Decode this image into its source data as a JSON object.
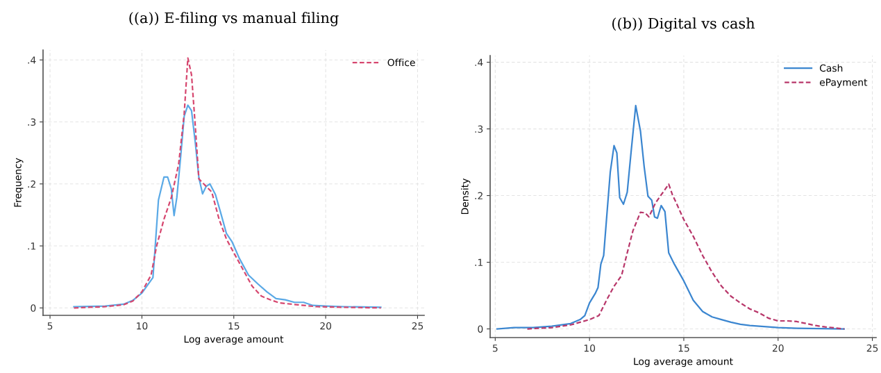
{
  "chart_data": [
    {
      "type": "line",
      "title": "((a)) E-filing vs manual filing",
      "xlabel": "Log average amount",
      "ylabel": "Frequency",
      "xlim": [
        4.62,
        25.36
      ],
      "ylim": [
        -0.012,
        0.416
      ],
      "xticks": [
        5,
        10,
        15,
        20,
        25
      ],
      "yticks": [
        0,
        {
          "value": 0.1,
          "label": ".1"
        },
        {
          "value": 0.2,
          "label": ".2"
        },
        {
          "value": 0.3,
          "label": ".3"
        },
        {
          "value": 0.4,
          "label": ".4"
        }
      ],
      "grid": true,
      "legend": "top right",
      "series": [
        {
          "color": "#5aa9e6",
          "line_style": "solid",
          "x": [
            6.3,
            8,
            9,
            9.5,
            10,
            10.6,
            10.7,
            10.9,
            11.2,
            11.4,
            11.6,
            11.75,
            11.9,
            12.1,
            12.3,
            12.5,
            12.7,
            12.9,
            13.1,
            13.3,
            13.5,
            13.7,
            14,
            14.3,
            14.6,
            14.9,
            15.3,
            15.8,
            16.3,
            16.8,
            17.3,
            17.8,
            18.3,
            18.8,
            19.3,
            20,
            21,
            23
          ],
          "values": [
            0.002,
            0.003,
            0.006,
            0.012,
            0.024,
            0.049,
            0.089,
            0.174,
            0.211,
            0.211,
            0.192,
            0.149,
            0.178,
            0.241,
            0.309,
            0.327,
            0.318,
            0.268,
            0.21,
            0.184,
            0.196,
            0.2,
            0.183,
            0.152,
            0.12,
            0.107,
            0.08,
            0.053,
            0.039,
            0.026,
            0.015,
            0.013,
            0.009,
            0.009,
            0.004,
            0.003,
            0.002,
            0.001
          ]
        },
        {
          "name": "Office",
          "color": "#d6476f",
          "line_style": "dashed",
          "x": [
            6.3,
            8,
            9,
            9.5,
            10,
            10.5,
            10.8,
            11.2,
            11.6,
            12,
            12.3,
            12.5,
            12.7,
            12.9,
            13.1,
            13.5,
            13.8,
            14.2,
            14.6,
            15,
            15.5,
            16,
            16.5,
            17,
            17.5,
            18.5,
            19.5,
            21,
            23
          ],
          "values": [
            0,
            0.002,
            0.005,
            0.011,
            0.026,
            0.053,
            0.1,
            0.143,
            0.178,
            0.232,
            0.313,
            0.403,
            0.376,
            0.295,
            0.208,
            0.196,
            0.187,
            0.143,
            0.111,
            0.089,
            0.062,
            0.035,
            0.019,
            0.013,
            0.008,
            0.005,
            0.002,
            0.001,
            0
          ]
        }
      ]
    },
    {
      "type": "line",
      "title": "((b)) Digital vs cash",
      "xlabel": "Log average amount",
      "ylabel": "Density",
      "xlim": [
        4.73,
        25.2
      ],
      "ylim": [
        -0.013,
        0.41
      ],
      "xticks": [
        5,
        10,
        15,
        20,
        25
      ],
      "yticks": [
        0,
        {
          "value": 0.1,
          "label": ".1"
        },
        {
          "value": 0.2,
          "label": ".2"
        },
        {
          "value": 0.3,
          "label": ".3"
        },
        {
          "value": 0.4,
          "label": ".4"
        }
      ],
      "grid": true,
      "legend": "top right",
      "series": [
        {
          "name": "Cash",
          "color": "#3b86d0",
          "line_style": "solid",
          "x": [
            5.1,
            6,
            7,
            8,
            9,
            9.5,
            9.75,
            10,
            10.3,
            10.45,
            10.6,
            10.75,
            10.9,
            11.1,
            11.3,
            11.45,
            11.6,
            11.8,
            12,
            12.2,
            12.45,
            12.7,
            12.9,
            13.1,
            13.3,
            13.45,
            13.6,
            13.8,
            14,
            14.2,
            14.5,
            15,
            15.5,
            16,
            16.5,
            17,
            17.5,
            18,
            18.5,
            19,
            20,
            21,
            23.5
          ],
          "values": [
            0,
            0.002,
            0.002,
            0.004,
            0.008,
            0.014,
            0.02,
            0.039,
            0.053,
            0.062,
            0.097,
            0.11,
            0.164,
            0.235,
            0.275,
            0.264,
            0.197,
            0.187,
            0.205,
            0.264,
            0.335,
            0.297,
            0.243,
            0.199,
            0.193,
            0.168,
            0.166,
            0.185,
            0.176,
            0.114,
            0.097,
            0.072,
            0.043,
            0.026,
            0.018,
            0.014,
            0.01,
            0.007,
            0.005,
            0.004,
            0.002,
            0.001,
            0
          ]
        },
        {
          "name": "ePayment",
          "color": "#b8376a",
          "line_style": "dashed",
          "x": [
            6.7,
            8,
            9,
            9.5,
            10,
            10.5,
            10.9,
            11.3,
            11.7,
            12,
            12.3,
            12.7,
            12.95,
            13.15,
            13.5,
            13.9,
            14.2,
            14.4,
            14.6,
            15,
            15.5,
            16,
            16.5,
            17,
            17.5,
            18,
            18.5,
            19,
            19.5,
            20,
            20.5,
            21,
            21.5,
            22,
            22.5,
            23.5
          ],
          "values": [
            0,
            0.002,
            0.006,
            0.01,
            0.014,
            0.02,
            0.043,
            0.064,
            0.08,
            0.114,
            0.147,
            0.175,
            0.174,
            0.168,
            0.189,
            0.205,
            0.217,
            0.201,
            0.189,
            0.164,
            0.139,
            0.11,
            0.085,
            0.064,
            0.049,
            0.039,
            0.03,
            0.024,
            0.016,
            0.012,
            0.012,
            0.011,
            0.008,
            0.005,
            0.003,
            0
          ]
        }
      ]
    }
  ]
}
